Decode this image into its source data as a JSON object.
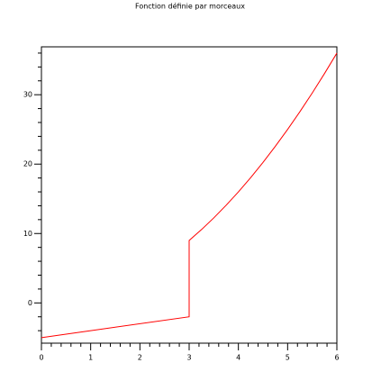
{
  "chart_data": {
    "type": "line",
    "title": "Fonction définie par morceaux",
    "x": [
      0,
      3,
      3,
      3.25,
      3.5,
      3.75,
      4,
      4.25,
      4.5,
      4.75,
      5,
      5.25,
      5.5,
      5.75,
      6
    ],
    "series": [
      {
        "color": "#ff0000",
        "values": [
          -5,
          -2,
          9,
          10.5625,
          12.25,
          14.0625,
          16,
          18.0625,
          20.25,
          22.5625,
          25,
          27.5625,
          30.25,
          33.0625,
          36
        ]
      }
    ],
    "xlim": [
      0,
      6
    ],
    "ylim": [
      -5.8,
      36.9
    ],
    "xticks": [
      0,
      1,
      2,
      3,
      4,
      5,
      6
    ],
    "yticks": [
      0,
      10,
      20,
      30
    ],
    "xminorticks": [
      0.2,
      0.4,
      0.6,
      0.8,
      1.2,
      1.4,
      1.6,
      1.8,
      2.2,
      2.4,
      2.6,
      2.8,
      3.2,
      3.4,
      3.6,
      3.8,
      4.2,
      4.4,
      4.6,
      4.8,
      5.2,
      5.4,
      5.6,
      5.8
    ],
    "yminorticks": [
      -4,
      -2,
      2,
      4,
      6,
      8,
      12,
      14,
      16,
      18,
      22,
      24,
      26,
      28,
      32,
      34,
      36
    ],
    "grid": false
  }
}
